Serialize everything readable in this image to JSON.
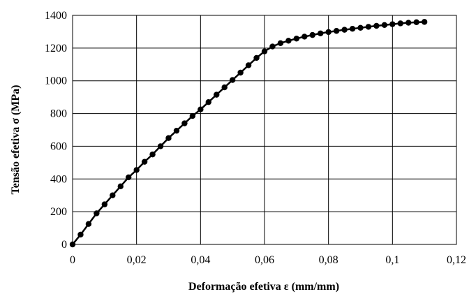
{
  "chart_data": {
    "type": "line",
    "title": "",
    "xlabel": "Deformação efetiva ε (mm/mm)",
    "ylabel": "Tensão efetiva σ (MPa)",
    "xlim": [
      0,
      0.12
    ],
    "ylim": [
      0,
      1400
    ],
    "x_ticks": [
      "0",
      "0,02",
      "0,04",
      "0,06",
      "0,08",
      "0,1",
      "0,12"
    ],
    "y_ticks": [
      "0",
      "200",
      "400",
      "600",
      "800",
      "1000",
      "1200",
      "1400"
    ],
    "grid": true,
    "marker": "circle",
    "series": [
      {
        "color": "#000000",
        "x": [
          0,
          0.0025,
          0.005,
          0.0075,
          0.01,
          0.0125,
          0.015,
          0.0175,
          0.02,
          0.0225,
          0.025,
          0.0275,
          0.03,
          0.0325,
          0.035,
          0.0375,
          0.04,
          0.0425,
          0.045,
          0.0475,
          0.05,
          0.0525,
          0.055,
          0.0575,
          0.06,
          0.0625,
          0.065,
          0.0675,
          0.07,
          0.0725,
          0.075,
          0.0775,
          0.08,
          0.0825,
          0.085,
          0.0875,
          0.09,
          0.0925,
          0.095,
          0.0975,
          0.1,
          0.1025,
          0.105,
          0.1075,
          0.11
        ],
        "y": [
          0,
          60,
          125,
          190,
          245,
          300,
          355,
          410,
          455,
          505,
          550,
          600,
          650,
          695,
          740,
          785,
          825,
          870,
          915,
          960,
          1005,
          1050,
          1095,
          1140,
          1180,
          1210,
          1230,
          1245,
          1258,
          1270,
          1280,
          1290,
          1298,
          1305,
          1312,
          1318,
          1324,
          1330,
          1336,
          1341,
          1346,
          1351,
          1355,
          1358,
          1360
        ]
      }
    ]
  }
}
